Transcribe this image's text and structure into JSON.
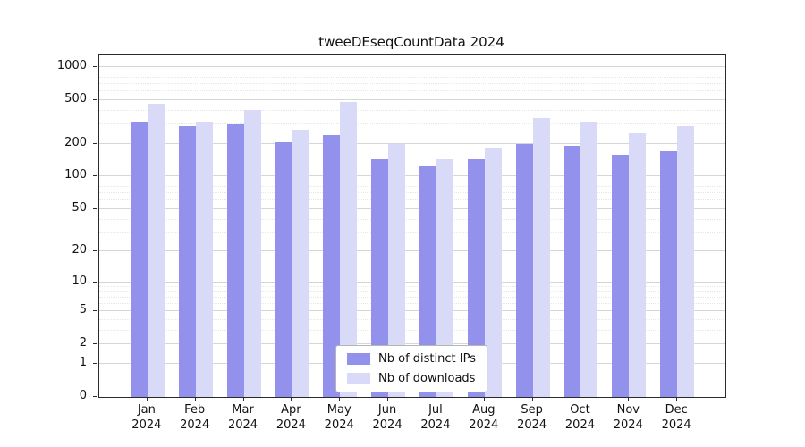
{
  "title": "tweeDEseqCountData 2024",
  "chart_data": {
    "type": "bar",
    "title": "tweeDEseqCountData 2024",
    "categories": [
      "Jan 2024",
      "Feb 2024",
      "Mar 2024",
      "Apr 2024",
      "May 2024",
      "Jun 2024",
      "Jul 2024",
      "Aug 2024",
      "Sep 2024",
      "Oct 2024",
      "Nov 2024",
      "Dec 2024"
    ],
    "series": [
      {
        "name": "Nb of distinct IPs",
        "color": "#9292ec",
        "values": [
          320,
          290,
          300,
          205,
          240,
          145,
          125,
          145,
          200,
          190,
          160,
          170
        ]
      },
      {
        "name": "Nb of downloads",
        "color": "#d9d9f8",
        "values": [
          460,
          320,
          410,
          270,
          480,
          200,
          145,
          185,
          340,
          310,
          250,
          290
        ]
      }
    ],
    "y_ticks": [
      0,
      1,
      2,
      5,
      10,
      20,
      50,
      100,
      200,
      500,
      1000
    ],
    "y_minor_ticks": [
      3,
      4,
      6,
      7,
      8,
      9,
      30,
      40,
      60,
      70,
      80,
      90,
      300,
      400,
      600,
      700,
      800,
      900
    ],
    "y_scale": "log",
    "ylim": [
      0,
      1300
    ],
    "xlabel": "",
    "ylabel": "",
    "grid": true,
    "legend": {
      "position": "bottom-center",
      "entries": [
        "Nb of distinct IPs",
        "Nb of downloads"
      ]
    }
  }
}
